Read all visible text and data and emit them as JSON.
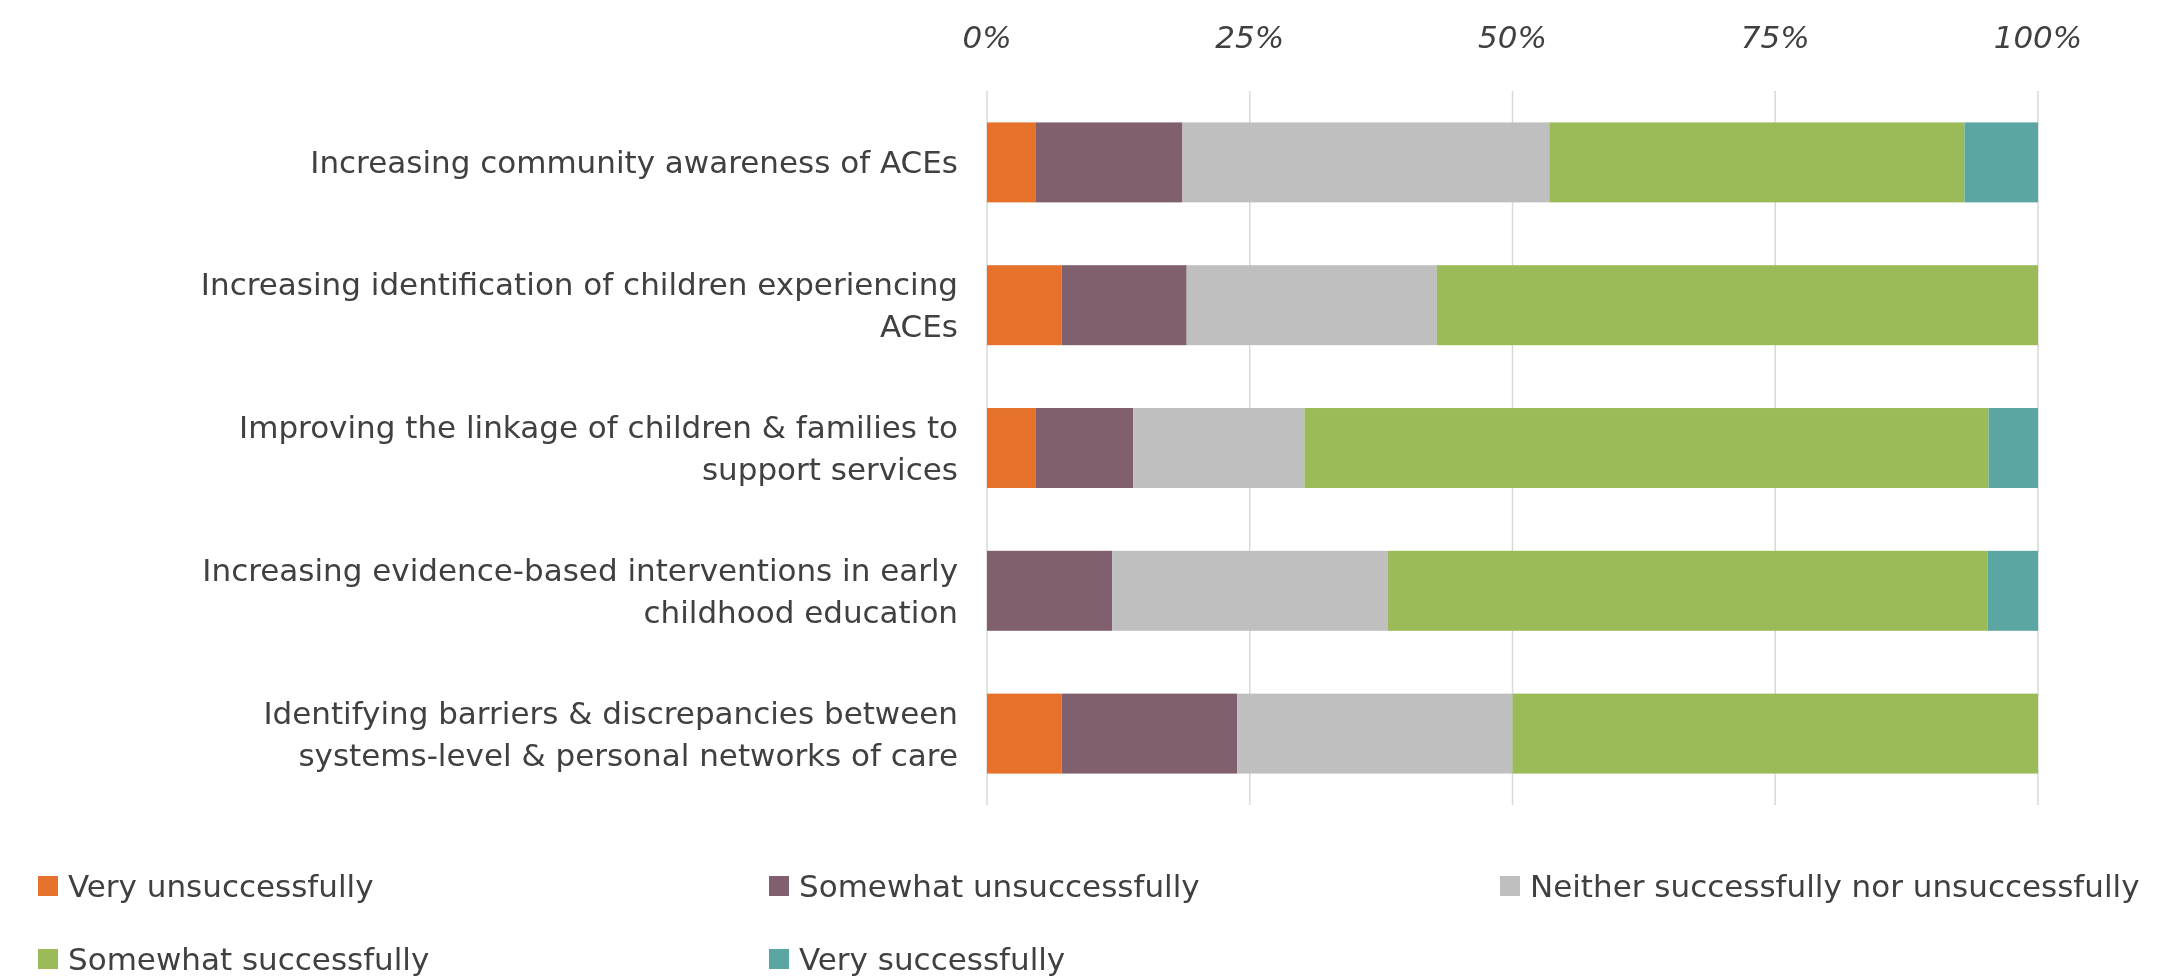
{
  "chart_data": {
    "type": "bar",
    "orientation": "horizontal",
    "stacked": true,
    "categories": [
      "Increasing community awareness of ACEs",
      "Increasing identification of children experiencing ACEs",
      "Improving the linkage of children & families to support services",
      "Increasing evidence-based interventions in early childhood education",
      "Identifying barriers & discrepancies between systems-level & personal networks of care"
    ],
    "series": [
      {
        "name": "Very unsuccessfully",
        "color": "#e5712b",
        "values": [
          4.6,
          7.1,
          4.6,
          0,
          7.1
        ]
      },
      {
        "name": "Somewhat unsuccessfully",
        "color": "#80606e",
        "values": [
          14.0,
          11.9,
          9.3,
          11.9,
          16.7
        ]
      },
      {
        "name": "Neither successfully nor unsuccessfully",
        "color": "#bfbfbf",
        "values": [
          34.9,
          23.8,
          16.3,
          26.2,
          26.2
        ]
      },
      {
        "name": "Somewhat successfully",
        "color": "#9bbb59",
        "values": [
          39.5,
          57.2,
          65.1,
          57.1,
          50.0
        ]
      },
      {
        "name": "Very successfully",
        "color": "#5ba6a3",
        "values": [
          7.0,
          0,
          4.7,
          4.8,
          0
        ]
      }
    ],
    "xlim": [
      0,
      100
    ],
    "xticks": [
      {
        "value": 0,
        "label": "0%"
      },
      {
        "value": 25,
        "label": "25%"
      },
      {
        "value": 50,
        "label": "50%"
      },
      {
        "value": 75,
        "label": "75%"
      },
      {
        "value": 100,
        "label": "100%"
      }
    ],
    "grid": "x",
    "legend": "bottom"
  }
}
